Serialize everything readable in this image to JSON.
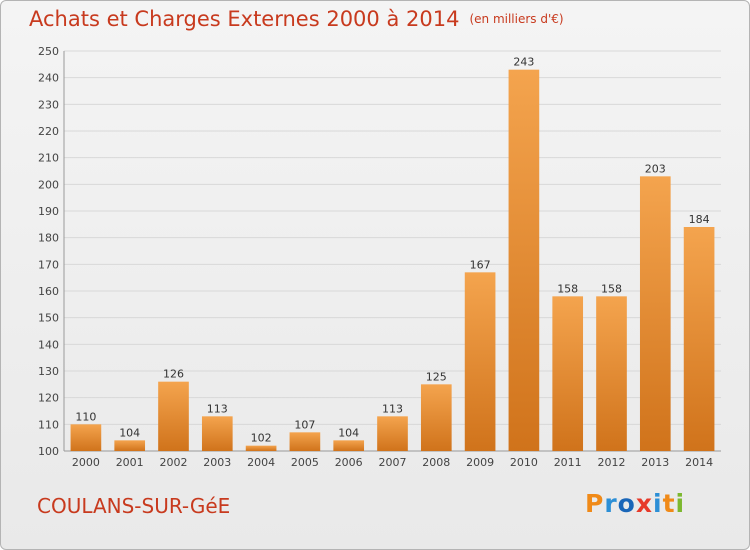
{
  "header": {
    "title": "Achats et Charges Externes 2000 à 2014",
    "unit": "(en milliers d'€)"
  },
  "footer": {
    "city": "COULANS-SUR-GéE",
    "logo_text": "Proxiti"
  },
  "colors": {
    "title": "#c83a1e",
    "bar_light": "#f4a44e",
    "bar_dark": "#d0731b",
    "grid": "#d8d8d8",
    "logo": [
      "#f08a18",
      "#2c8fd6",
      "#1a66b8",
      "#e73a2a",
      "#2c8fd6",
      "#f08a18",
      "#7cb82f"
    ]
  },
  "chart_data": {
    "type": "bar",
    "categories": [
      "2000",
      "2001",
      "2002",
      "2003",
      "2004",
      "2005",
      "2006",
      "2007",
      "2008",
      "2009",
      "2010",
      "2011",
      "2012",
      "2013",
      "2014"
    ],
    "values": [
      110,
      104,
      126,
      113,
      102,
      107,
      104,
      113,
      125,
      167,
      243,
      158,
      158,
      203,
      184
    ],
    "ylim": [
      100,
      250
    ],
    "yticks": [
      100,
      110,
      120,
      130,
      140,
      150,
      160,
      170,
      180,
      190,
      200,
      210,
      220,
      230,
      240,
      250
    ],
    "grid": true,
    "show_value_labels": true
  }
}
